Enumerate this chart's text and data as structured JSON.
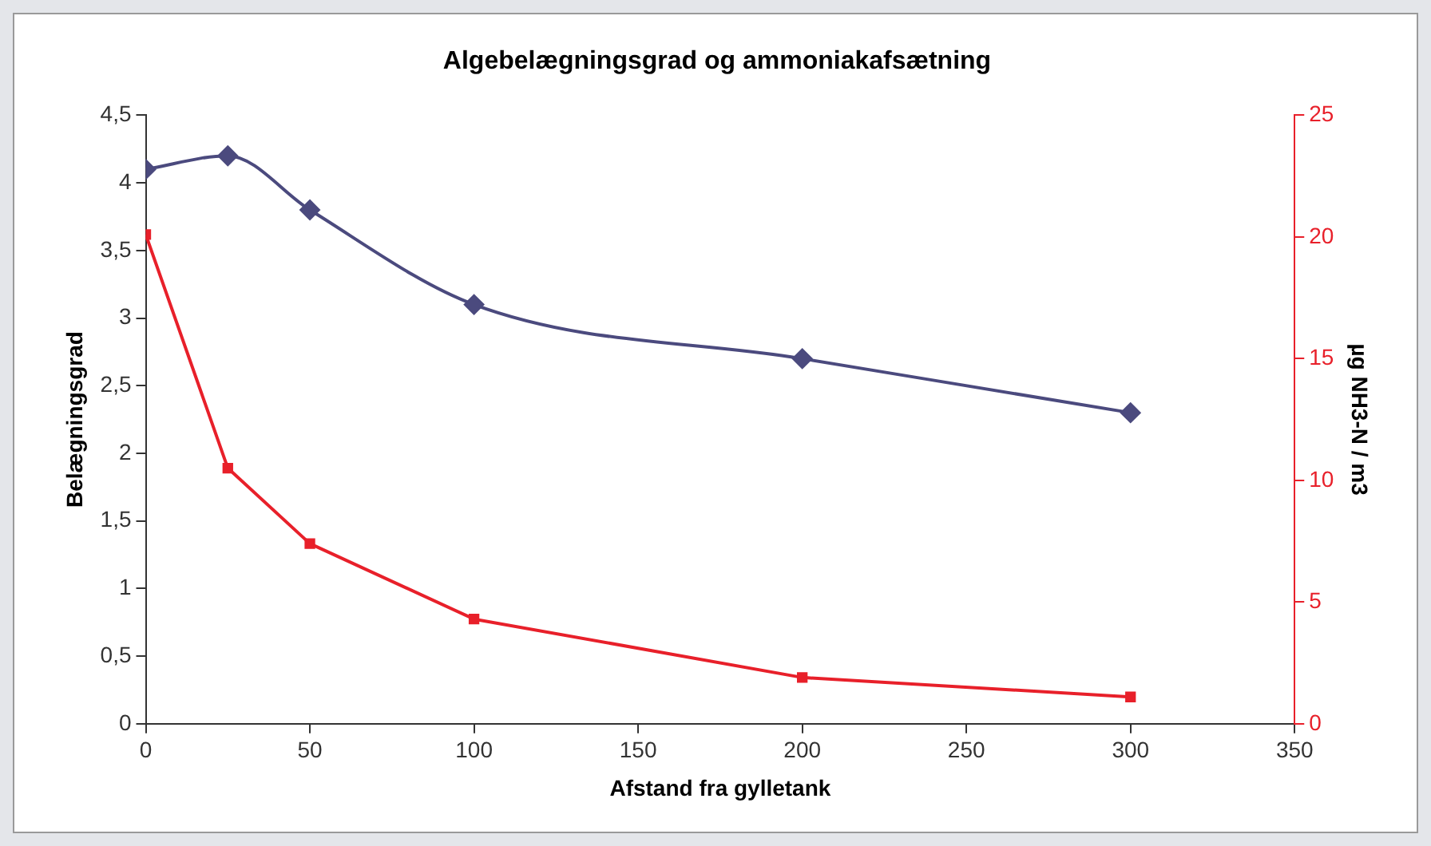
{
  "chart_data": {
    "type": "line",
    "title": "Algebelægningsgrad og ammoniakafsætning",
    "xlabel": "Afstand fra gylletank",
    "ylabel": "Belægningsgrad",
    "y2label": "µg NH3-N / m3",
    "x": [
      0,
      25,
      50,
      100,
      200,
      300
    ],
    "series": [
      {
        "color": "#4b4a7e",
        "values": [
          4.1,
          4.2,
          3.8,
          3.1,
          2.7,
          2.3
        ],
        "marker": "diamond"
      },
      {
        "color": "#e8202a",
        "values": [
          20.1,
          10.5,
          7.4,
          4.3,
          1.9,
          1.1
        ],
        "marker": "square",
        "axis": "y2"
      }
    ],
    "xlim": [
      0,
      350
    ],
    "xticks": [
      0,
      50,
      100,
      150,
      200,
      250,
      300,
      350
    ],
    "ylim": [
      0,
      4.5
    ],
    "yticks": [
      {
        "value": 0,
        "label": "0"
      },
      {
        "value": 0.5,
        "label": "0,5"
      },
      {
        "value": 1,
        "label": "1"
      },
      {
        "value": 1.5,
        "label": "1,5"
      },
      {
        "value": 2,
        "label": "2"
      },
      {
        "value": 2.5,
        "label": "2,5"
      },
      {
        "value": 3,
        "label": "3"
      },
      {
        "value": 3.5,
        "label": "3,5"
      },
      {
        "value": 4,
        "label": "4"
      },
      {
        "value": 4.5,
        "label": "4,5"
      }
    ],
    "y2lim": [
      0,
      25
    ],
    "y2ticks": [
      0,
      5,
      10,
      15,
      20,
      25
    ],
    "grid": false,
    "legend": false,
    "line_style": "solid"
  }
}
